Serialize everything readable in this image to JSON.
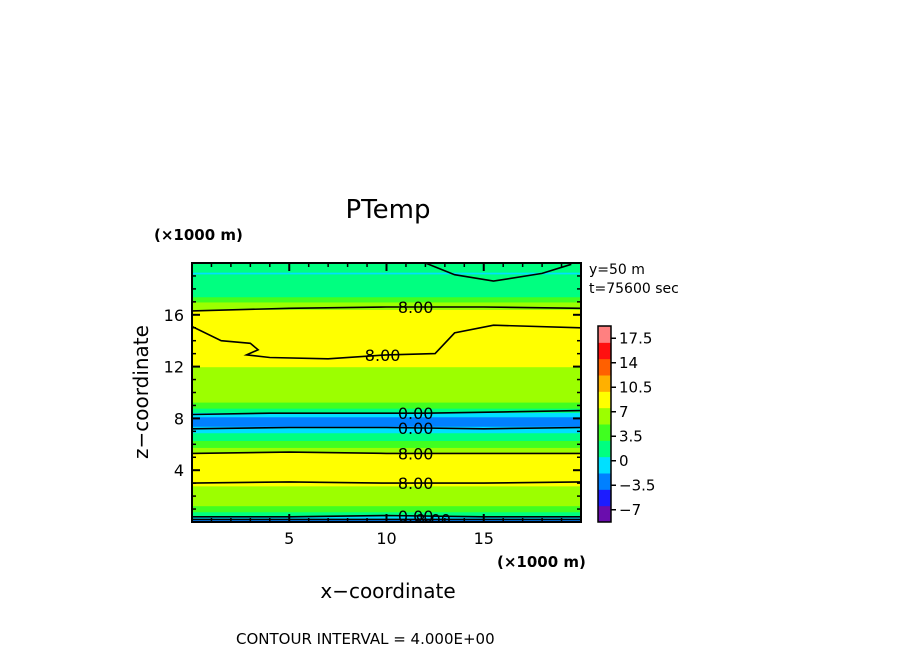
{
  "chart_data": {
    "type": "heatmap",
    "title": "PTemp",
    "xlabel": "x−coordinate",
    "ylabel": "z−coordinate",
    "x_unit_label": "(×1000 m)",
    "y_unit_label": "(×1000 m)",
    "xlim": [
      0,
      20
    ],
    "ylim": [
      0,
      20
    ],
    "x_ticks": [
      5,
      10,
      15
    ],
    "y_ticks": [
      4,
      8,
      12,
      16
    ],
    "x_tick_labels": [
      "5",
      "10",
      "15"
    ],
    "y_tick_labels": [
      "4",
      "8",
      "12",
      "16"
    ],
    "info_lines": [
      "y=50  m",
      "t=75600 sec"
    ],
    "footer": "CONTOUR INTERVAL = 4.000E+00",
    "colorbar": {
      "labels": [
        "17.5",
        "14",
        "10.5",
        "7",
        "3.5",
        "0",
        "−3.5",
        "−7"
      ],
      "values": [
        17.5,
        14,
        10.5,
        7,
        3.5,
        0,
        -3.5,
        -7
      ],
      "range": [
        -8.75,
        19.25
      ],
      "colors": [
        "#6a0dad",
        "#1c1cff",
        "#0080ff",
        "#00e0ff",
        "#00ff80",
        "#40ff20",
        "#9cff00",
        "#ffff00",
        "#ffb000",
        "#ff6000",
        "#ff1010",
        "#ff8080"
      ]
    },
    "value_profile": [
      {
        "z": 0.0,
        "v": -3.0
      },
      {
        "z": 0.3,
        "v": -1.0
      },
      {
        "z": 0.8,
        "v": 3.0
      },
      {
        "z": 1.5,
        "v": 6.0
      },
      {
        "z": 2.5,
        "v": 7.2
      },
      {
        "z": 3.1,
        "v": 8.0
      },
      {
        "z": 4.2,
        "v": 8.6
      },
      {
        "z": 5.3,
        "v": 8.0
      },
      {
        "z": 6.0,
        "v": 4.0
      },
      {
        "z": 6.6,
        "v": 2.0
      },
      {
        "z": 7.2,
        "v": -1.0
      },
      {
        "z": 7.8,
        "v": -3.0
      },
      {
        "z": 8.3,
        "v": -1.0
      },
      {
        "z": 8.8,
        "v": 3.0
      },
      {
        "z": 9.5,
        "v": 6.2
      },
      {
        "z": 11.0,
        "v": 7.2
      },
      {
        "z": 13.0,
        "v": 8.0
      },
      {
        "z": 15.0,
        "v": 8.4
      },
      {
        "z": 16.3,
        "v": 8.0
      },
      {
        "z": 17.0,
        "v": 5.0
      },
      {
        "z": 17.6,
        "v": 2.0
      },
      {
        "z": 18.5,
        "v": 1.0
      },
      {
        "z": 19.3,
        "v": 0.5
      },
      {
        "z": 20.0,
        "v": 1.5
      }
    ],
    "contours": [
      {
        "label": "8.00",
        "label_x": 11.5,
        "points": [
          [
            0,
            3.0
          ],
          [
            5,
            3.1
          ],
          [
            10,
            3.0
          ],
          [
            15,
            3.0
          ],
          [
            20,
            3.1
          ]
        ]
      },
      {
        "label": "8.00",
        "label_x": 11.5,
        "points": [
          [
            0,
            5.3
          ],
          [
            5,
            5.4
          ],
          [
            10,
            5.3
          ],
          [
            15,
            5.3
          ],
          [
            20,
            5.3
          ]
        ]
      },
      {
        "label": "0.00",
        "label_x": 11.5,
        "points": [
          [
            0,
            7.2
          ],
          [
            5,
            7.3
          ],
          [
            10,
            7.3
          ],
          [
            15,
            7.2
          ],
          [
            20,
            7.3
          ]
        ]
      },
      {
        "label": "0.00",
        "label_x": 11.5,
        "points": [
          [
            0,
            8.3
          ],
          [
            4,
            8.4
          ],
          [
            8,
            8.4
          ],
          [
            12,
            8.4
          ],
          [
            16,
            8.5
          ],
          [
            20,
            8.6
          ]
        ]
      },
      {
        "label": "8.00",
        "label_x": 9.8,
        "points": [
          [
            0,
            15.1
          ],
          [
            1.5,
            14.0
          ],
          [
            3.0,
            13.8
          ],
          [
            3.4,
            13.3
          ],
          [
            2.8,
            12.9
          ],
          [
            4,
            12.7
          ],
          [
            7,
            12.6
          ],
          [
            10,
            12.9
          ],
          [
            12.5,
            13.0
          ],
          [
            13.5,
            14.6
          ],
          [
            15.5,
            15.2
          ],
          [
            20,
            15.0
          ]
        ]
      },
      {
        "label": "8.00",
        "label_x": 11.5,
        "points": [
          [
            0,
            16.3
          ],
          [
            5,
            16.5
          ],
          [
            10,
            16.6
          ],
          [
            15,
            16.6
          ],
          [
            20,
            16.5
          ]
        ]
      },
      {
        "label": "",
        "label_x": 0,
        "points": [
          [
            12.0,
            20
          ],
          [
            13.5,
            19.1
          ],
          [
            15.5,
            18.6
          ],
          [
            18,
            19.2
          ],
          [
            19.5,
            19.9
          ]
        ]
      },
      {
        "label": "0.00",
        "label_x": 11.5,
        "points": [
          [
            0,
            0.4
          ],
          [
            5,
            0.4
          ],
          [
            10,
            0.5
          ],
          [
            15,
            0.4
          ],
          [
            20,
            0.4
          ]
        ]
      },
      {
        "label": "8.00",
        "label_x": 12.4,
        "points": [
          [
            0,
            0.2
          ],
          [
            10,
            0.2
          ],
          [
            20,
            0.2
          ]
        ]
      }
    ]
  }
}
